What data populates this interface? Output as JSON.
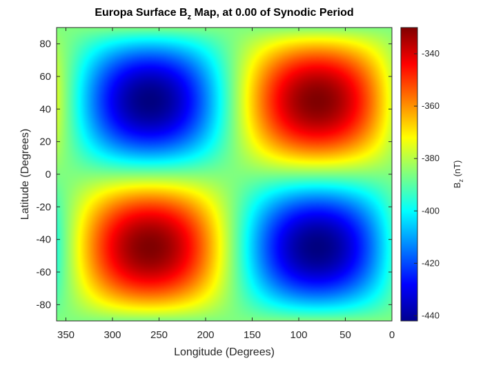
{
  "chart_data": {
    "type": "heatmap",
    "title": {
      "prefix": "Europa Surface B",
      "subscript": "z",
      "suffix": " Map, at 0.00 of Synodic Period"
    },
    "xlabel": "Longitude (Degrees)",
    "ylabel": "Latitude (Degrees)",
    "colorbar_label": {
      "prefix": "B",
      "subscript": "z",
      "suffix": " (nT)"
    },
    "x_range": [
      360,
      0
    ],
    "y_range": [
      -90,
      90
    ],
    "x_ticks": [
      350,
      300,
      250,
      200,
      150,
      100,
      50,
      0
    ],
    "y_ticks": [
      80,
      60,
      40,
      20,
      0,
      -20,
      -40,
      -60,
      -80
    ],
    "color_range": [
      -442,
      -330
    ],
    "colorbar_ticks": [
      -340,
      -360,
      -380,
      -400,
      -420,
      -440
    ],
    "colormap": "jet",
    "field": {
      "mean": -386,
      "amplitude": 56,
      "extrema": [
        {
          "lon": 80,
          "lat": 45,
          "value": -330,
          "kind": "max"
        },
        {
          "lon": 260,
          "lat": 45,
          "value": -442,
          "kind": "min"
        },
        {
          "lon": 260,
          "lat": -45,
          "value": -330,
          "kind": "max"
        },
        {
          "lon": 80,
          "lat": -45,
          "value": -442,
          "kind": "min"
        }
      ]
    },
    "grid": false,
    "legend": "none"
  }
}
